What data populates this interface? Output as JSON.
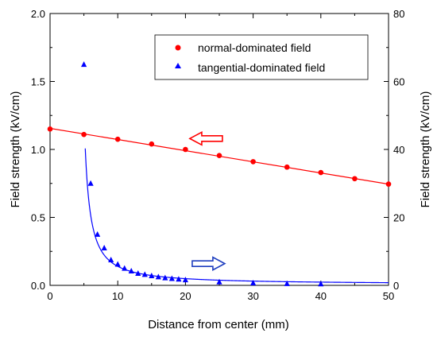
{
  "chart_data": {
    "type": "scatter",
    "title": "",
    "xlabel": "Distance from center (mm)",
    "ylabel_left": "Field strength (kV/cm)",
    "ylabel_right": "Field strength (kV/cm)",
    "xlim": [
      0,
      50
    ],
    "ylim_left": [
      0,
      2.0
    ],
    "ylim_right": [
      0,
      80
    ],
    "x_ticks": [
      0,
      10,
      20,
      30,
      40,
      50
    ],
    "y_ticks_left": [
      0.0,
      0.5,
      1.0,
      1.5,
      2.0
    ],
    "y_ticks_right": [
      0,
      20,
      40,
      60,
      80
    ],
    "y_tick_labels_left": [
      "0.0",
      "0.5",
      "1.0",
      "1.5",
      "2.0"
    ],
    "grid": false,
    "legend_position": "top-right",
    "colors": {
      "normal": "#ff0000",
      "tangential": "#0000ff",
      "arrow_normal": "#ff0000",
      "arrow_tangential": "#1f3fbf"
    },
    "series": [
      {
        "name": "normal-dominated field",
        "axis": "left",
        "marker": "circle",
        "color": "#ff0000",
        "x": [
          0,
          5,
          10,
          15,
          20,
          25,
          30,
          35,
          40,
          45,
          50
        ],
        "y": [
          1.15,
          1.11,
          1.075,
          1.04,
          1.0,
          0.955,
          0.91,
          0.87,
          0.83,
          0.785,
          0.745
        ],
        "fit": {
          "type": "linear",
          "x": [
            0,
            50
          ],
          "y": [
            1.155,
            0.745
          ]
        }
      },
      {
        "name": "tangential-dominated field",
        "axis": "right",
        "marker": "triangle",
        "color": "#0000ff",
        "x": [
          5,
          6,
          7,
          8,
          9,
          10,
          11,
          12,
          13,
          14,
          15,
          16,
          17,
          18,
          19,
          20,
          25,
          30,
          35,
          40
        ],
        "y": [
          65,
          30,
          15,
          11,
          7.5,
          6.2,
          5.0,
          4.2,
          3.5,
          3.2,
          2.8,
          2.5,
          2.2,
          2.0,
          1.8,
          1.6,
          1.0,
          0.7,
          0.5,
          0.4
        ],
        "fit": {
          "type": "curve"
        }
      }
    ],
    "annotations": [
      {
        "type": "arrow",
        "direction": "left",
        "indicates_axis": "left",
        "color": "#ff0000",
        "at": [
          21,
          1.08
        ]
      },
      {
        "type": "arrow",
        "direction": "right",
        "indicates_axis": "right",
        "color": "#1f3fbf",
        "at": [
          21,
          6.4
        ]
      }
    ]
  }
}
